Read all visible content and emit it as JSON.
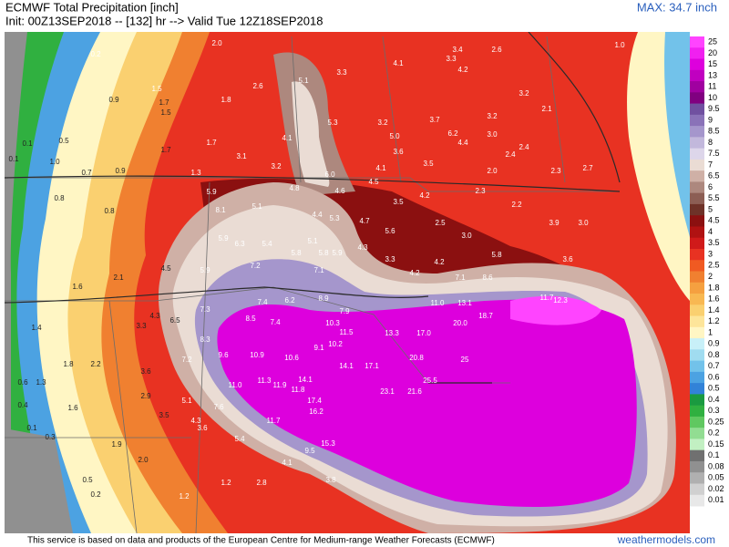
{
  "header": {
    "title": "ECMWF Total Precipitation [inch]",
    "subtitle": "Init: 00Z13SEP2018 -- [132] hr --> Valid Tue 12Z18SEP2018",
    "max": "MAX: 34.7 inch"
  },
  "footer": {
    "credit": "This service is based on data and products of the European Centre for Medium-range Weather Forecasts (ECMWF)",
    "site": "weathermodels.com"
  },
  "colorbar": {
    "levels": [
      25,
      20,
      15,
      13,
      11,
      10,
      9.5,
      9,
      8.5,
      8,
      7.5,
      7,
      6.5,
      6,
      5.5,
      5,
      4.5,
      4,
      3.5,
      3,
      2.5,
      2,
      1.8,
      1.6,
      1.4,
      1.2,
      1,
      0.9,
      0.8,
      0.7,
      0.6,
      0.5,
      0.4,
      0.3,
      0.25,
      0.2,
      0.15,
      0.1,
      0.08,
      0.05,
      0.02,
      0.01
    ],
    "colors": [
      "#ff44ff",
      "#f020f0",
      "#dd00dd",
      "#c000c0",
      "#a000a0",
      "#800080",
      "#7050a0",
      "#8a72b8",
      "#a596cc",
      "#c2b8dc",
      "#ddd6ea",
      "#eadcd4",
      "#cfb0a6",
      "#ad887e",
      "#8c5e54",
      "#6e3228",
      "#8b1010",
      "#b01212",
      "#d01a1a",
      "#e83222",
      "#f05a22",
      "#f08030",
      "#f5a040",
      "#f8b852",
      "#fad070",
      "#fde59a",
      "#fff6c4",
      "#c8f0f8",
      "#a0dcf0",
      "#72c2ea",
      "#4ca2e2",
      "#3282d8",
      "#1a9a40",
      "#30b040",
      "#60c860",
      "#92dd92",
      "#c2f0c2",
      "#707070",
      "#909090",
      "#b0b0b0",
      "#d0d0d0",
      "#e8e8e8"
    ]
  },
  "map": {
    "labels": [
      "0.2",
      "1.5",
      "1.7",
      "1.5",
      "1.8",
      "2.0",
      "2.6",
      "0.9",
      "0.5",
      "0.1",
      "1.0",
      "0.1",
      "1.7",
      "1.7",
      "0.7",
      "0.9",
      "1.3",
      "3.1",
      "3.2",
      "4.1",
      "5.1",
      "5.3",
      "3.3",
      "6.0",
      "4.8",
      "4.6",
      "4.1",
      "3.4",
      "3.3",
      "4.2",
      "2.6",
      "3.2",
      "5.0",
      "3.7",
      "6.2",
      "4.4",
      "3.2",
      "3.0",
      "3.6",
      "4.1",
      "3.5",
      "4.5",
      "4.2",
      "3.5",
      "2.3",
      "2.2",
      "2.0",
      "2.3",
      "2.4",
      "3.2",
      "3.9",
      "0.8",
      "0.8",
      "5.9",
      "8.1",
      "5.1",
      "4.4",
      "5.3",
      "4.7",
      "5.6",
      "2.5",
      "3.0",
      "5.1",
      "5.8",
      "5.8",
      "5.9",
      "4.3",
      "3.3",
      "4.2",
      "4.2",
      "5.8",
      "3.6",
      "5.4",
      "6.3",
      "5.9",
      "5.9",
      "7.2",
      "7.1",
      "8.6",
      "7.1",
      "2.1",
      "1.6",
      "4.5",
      "7.3",
      "7.4",
      "6.2",
      "8.9",
      "7.9",
      "11.0",
      "13.1",
      "11.7",
      "12.3",
      "8.5",
      "7.4",
      "10.3",
      "11.5",
      "13.3",
      "17.0",
      "20.0",
      "18.7",
      "4.3",
      "3.3",
      "6.5",
      "8.3",
      "10.9",
      "10.6",
      "9.1",
      "10.2",
      "9.6",
      "7.2",
      "14.1",
      "17.1",
      "20.8",
      "25",
      "3.6",
      "11.3",
      "14.1",
      "11.0",
      "11.9",
      "11.8",
      "17.4",
      "23.1",
      "21.6",
      "25.5",
      "2.9",
      "5.1",
      "7.6",
      "16.2",
      "11.7",
      "3.5",
      "4.3",
      "3.6",
      "5.4",
      "15.3",
      "9.5",
      "1.9",
      "2.0",
      "4.1",
      "3.8",
      "2.8",
      "1.2",
      "1.2",
      "0.3",
      "0.1",
      "0.5",
      "0.2",
      "1.4",
      "1.8",
      "2.2",
      "1.3",
      "0.6",
      "0.4",
      "1.6",
      "3.0",
      "2.1",
      "2.4",
      "2.7",
      "1.0"
    ]
  }
}
